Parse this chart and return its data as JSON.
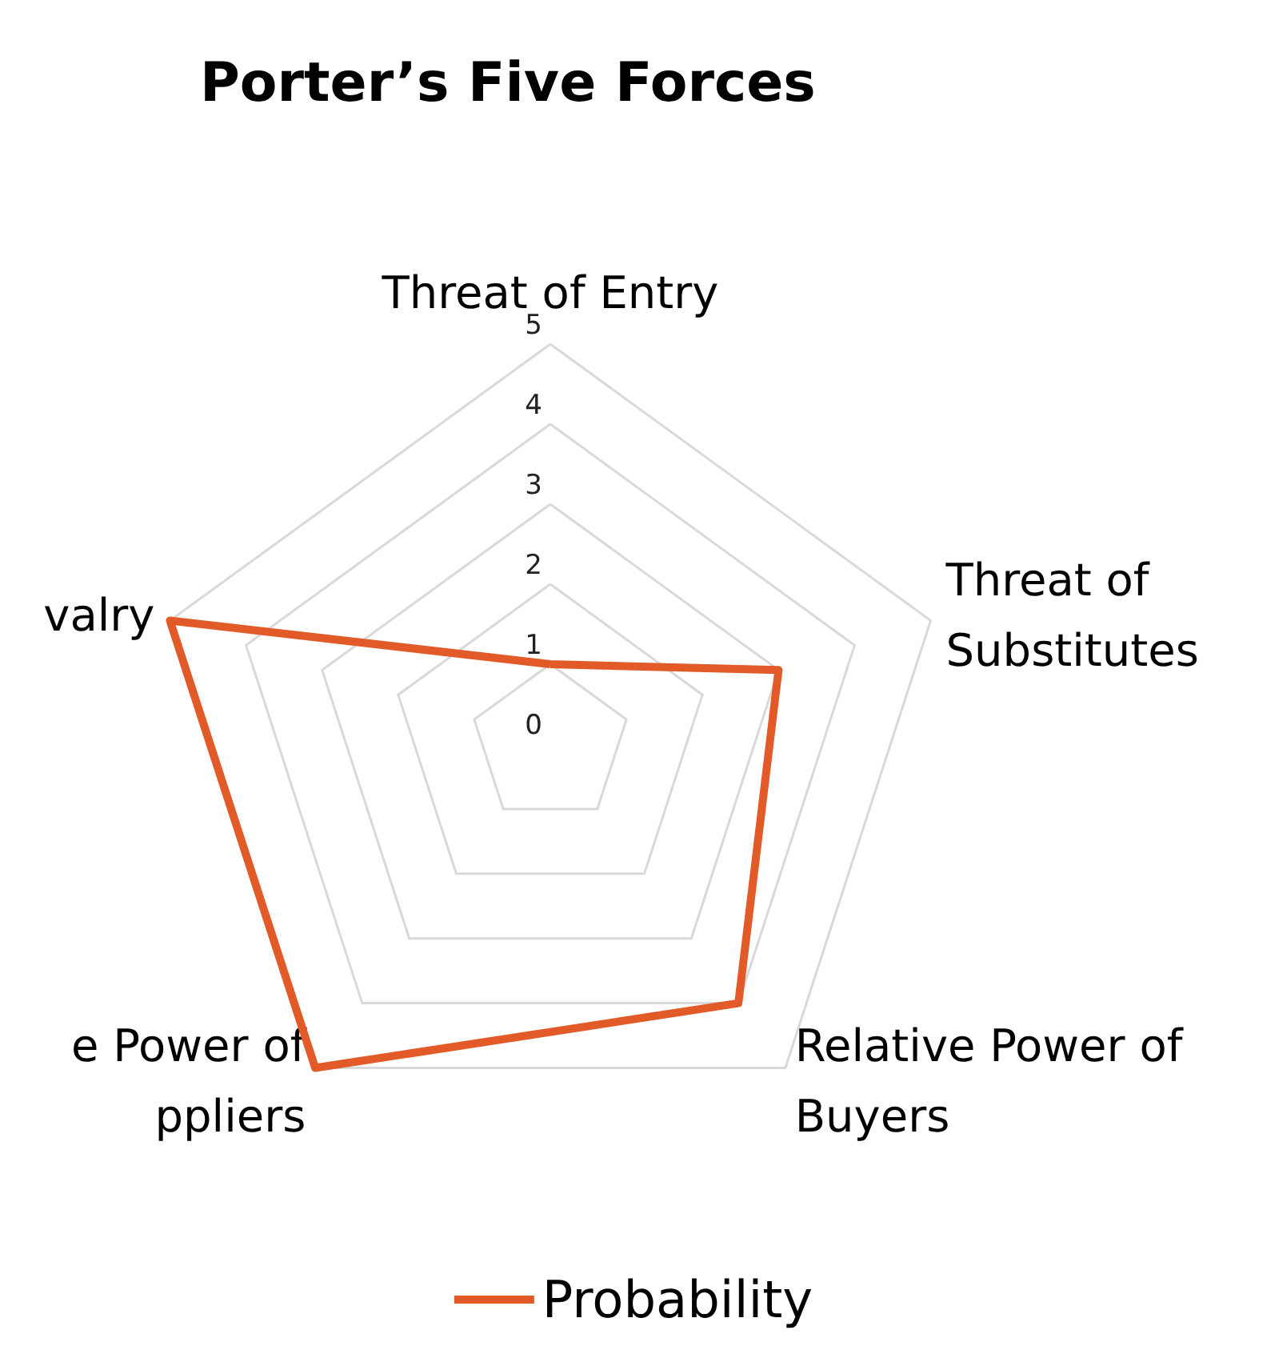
{
  "chart_data": {
    "type": "radar",
    "title": "Porter’s Five Forces",
    "categories": [
      "Threat of Entry",
      "Threat of\nSubstitutes",
      "Relative Power of\nBuyers",
      "e Power of\nppliers",
      "valry"
    ],
    "series": [
      {
        "name": "Probability",
        "color": "#e15a28",
        "values": [
          1,
          3,
          4,
          5,
          5
        ]
      }
    ],
    "ylim": [
      0,
      5
    ],
    "yticks": [
      0,
      1,
      2,
      3,
      4,
      5
    ],
    "grid": true,
    "legend": "bottom",
    "marker": "none",
    "line_style": "solid"
  }
}
